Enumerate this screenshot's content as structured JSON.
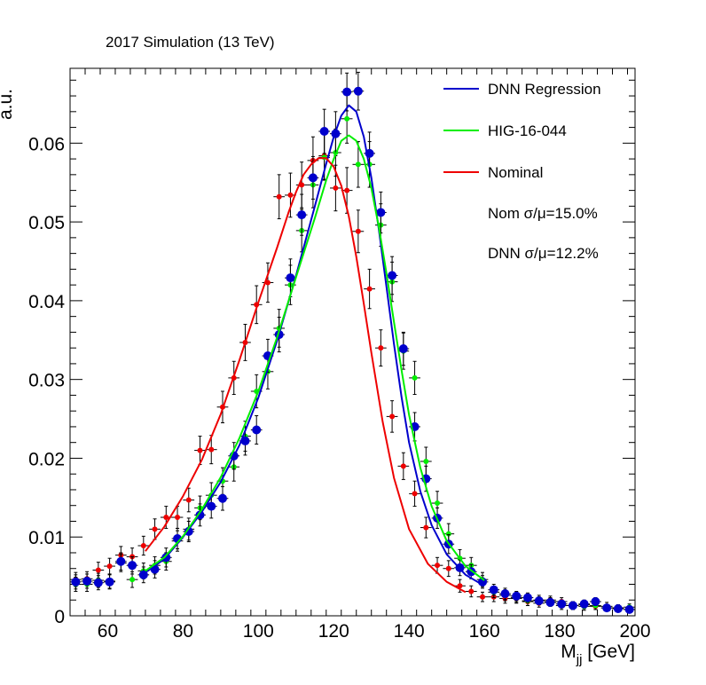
{
  "chart_data": {
    "type": "scatter",
    "header": "2017 Simulation (13 TeV)",
    "xlabel_main": "M",
    "xlabel_sub": "jj",
    "xlabel_unit": " [GeV]",
    "ylabel": "a.u.",
    "xlim": [
      50,
      200
    ],
    "ylim": [
      0,
      0.0695
    ],
    "x_ticks": [
      60,
      80,
      100,
      120,
      140,
      160,
      180,
      200
    ],
    "x_tick_labels": [
      "60",
      "80",
      "100",
      "120",
      "140",
      "160",
      "180",
      "200"
    ],
    "y_ticks": [
      0,
      0.01,
      0.02,
      0.03,
      0.04,
      0.05,
      0.06
    ],
    "y_tick_labels": [
      "0",
      "0.01",
      "0.02",
      "0.03",
      "0.04",
      "0.05",
      "0.06"
    ],
    "legend_position": "top-right",
    "legend": [
      {
        "label": "DNN Regression",
        "color": "#0000cc"
      },
      {
        "label": "HIG-16-044",
        "color": "#00ee00"
      },
      {
        "label": "Nominal",
        "color": "#ee0000"
      }
    ],
    "annotations": [
      "Nom σ/μ=15.0%",
      "DNN σ/μ=12.2%"
    ],
    "bin_half_width": 1.5,
    "series": [
      {
        "name": "DNN Regression",
        "color": "#0000cc",
        "marker_size": 5,
        "points": [
          [
            51.5,
            0.0043
          ],
          [
            54.5,
            0.0044
          ],
          [
            57.5,
            0.0042
          ],
          [
            60.5,
            0.0043
          ],
          [
            63.5,
            0.0069
          ],
          [
            66.5,
            0.0064
          ],
          [
            69.5,
            0.0052
          ],
          [
            72.5,
            0.0059
          ],
          [
            75.5,
            0.0074
          ],
          [
            78.5,
            0.0098
          ],
          [
            81.5,
            0.0107
          ],
          [
            84.5,
            0.0128
          ],
          [
            87.5,
            0.0139
          ],
          [
            90.5,
            0.0149
          ],
          [
            93.5,
            0.0203
          ],
          [
            96.5,
            0.0222
          ],
          [
            99.5,
            0.0236
          ],
          [
            102.5,
            0.033
          ],
          [
            105.5,
            0.0357
          ],
          [
            108.5,
            0.0429
          ],
          [
            111.5,
            0.0509
          ],
          [
            114.5,
            0.0556
          ],
          [
            117.5,
            0.0615
          ],
          [
            120.5,
            0.0612
          ],
          [
            123.5,
            0.0665
          ],
          [
            126.5,
            0.0666
          ],
          [
            129.5,
            0.0587
          ],
          [
            132.5,
            0.0512
          ],
          [
            135.5,
            0.0432
          ],
          [
            138.5,
            0.0339
          ],
          [
            141.5,
            0.024
          ],
          [
            144.5,
            0.0174
          ],
          [
            147.5,
            0.0124
          ],
          [
            150.5,
            0.0091
          ],
          [
            153.5,
            0.0061
          ],
          [
            156.5,
            0.0056
          ],
          [
            159.5,
            0.0043
          ],
          [
            162.5,
            0.0033
          ],
          [
            165.5,
            0.0028
          ],
          [
            168.5,
            0.0025
          ],
          [
            171.5,
            0.0023
          ],
          [
            174.5,
            0.0019
          ],
          [
            177.5,
            0.0017
          ],
          [
            180.5,
            0.0015
          ],
          [
            183.5,
            0.0013
          ],
          [
            186.5,
            0.0015
          ],
          [
            189.5,
            0.0018
          ],
          [
            192.5,
            0.001
          ],
          [
            195.5,
            0.0009
          ],
          [
            198.5,
            0.0008
          ]
        ],
        "errors": [
          0.0009,
          0.0009,
          0.0009,
          0.0009,
          0.0011,
          0.0011,
          0.001,
          0.0011,
          0.0012,
          0.0013,
          0.0013,
          0.0014,
          0.0015,
          0.0015,
          0.0017,
          0.0018,
          0.0018,
          0.0021,
          0.0022,
          0.0024,
          0.0026,
          0.0027,
          0.0028,
          0.0028,
          0.0024,
          0.0024,
          0.0027,
          0.0026,
          0.0024,
          0.0021,
          0.0018,
          0.0016,
          0.0013,
          0.0012,
          0.001,
          0.0009,
          0.0008,
          0.0007,
          0.0007,
          0.0006,
          0.0006,
          0.0005,
          0.0005,
          0.0005,
          0.0005,
          0.0005,
          0.0005,
          0.0004,
          0.0004,
          0.0004
        ],
        "curve": [
          [
            70,
            0.0055
          ],
          [
            75,
            0.0072
          ],
          [
            80,
            0.01
          ],
          [
            85,
            0.0132
          ],
          [
            90,
            0.017
          ],
          [
            95,
            0.0217
          ],
          [
            100,
            0.0277
          ],
          [
            105,
            0.035
          ],
          [
            110,
            0.0432
          ],
          [
            115,
            0.052
          ],
          [
            118,
            0.0574
          ],
          [
            120,
            0.0608
          ],
          [
            122,
            0.0635
          ],
          [
            124,
            0.0648
          ],
          [
            126,
            0.064
          ],
          [
            128,
            0.0608
          ],
          [
            130,
            0.0556
          ],
          [
            132,
            0.049
          ],
          [
            134,
            0.0418
          ],
          [
            136,
            0.0345
          ],
          [
            138,
            0.0278
          ],
          [
            140,
            0.022
          ],
          [
            143,
            0.0158
          ],
          [
            146,
            0.0115
          ],
          [
            150,
            0.0078
          ],
          [
            155,
            0.0052
          ],
          [
            160,
            0.0038
          ]
        ]
      },
      {
        "name": "HIG-16-044",
        "color": "#00ee00",
        "marker_size": 3,
        "points": [
          [
            51.5,
            0.004
          ],
          [
            54.5,
            0.004
          ],
          [
            57.5,
            0.0045
          ],
          [
            60.5,
            0.0044
          ],
          [
            63.5,
            0.0067
          ],
          [
            66.5,
            0.0046
          ],
          [
            69.5,
            0.0057
          ],
          [
            72.5,
            0.0064
          ],
          [
            75.5,
            0.0069
          ],
          [
            78.5,
            0.0095
          ],
          [
            81.5,
            0.011
          ],
          [
            84.5,
            0.0137
          ],
          [
            87.5,
            0.0153
          ],
          [
            90.5,
            0.0171
          ],
          [
            93.5,
            0.0189
          ],
          [
            96.5,
            0.0228
          ],
          [
            99.5,
            0.0285
          ],
          [
            102.5,
            0.031
          ],
          [
            105.5,
            0.0365
          ],
          [
            108.5,
            0.042
          ],
          [
            111.5,
            0.0489
          ],
          [
            114.5,
            0.0547
          ],
          [
            117.5,
            0.0582
          ],
          [
            120.5,
            0.0588
          ],
          [
            123.5,
            0.0631
          ],
          [
            126.5,
            0.0573
          ],
          [
            129.5,
            0.0573
          ],
          [
            132.5,
            0.0496
          ],
          [
            135.5,
            0.0424
          ],
          [
            138.5,
            0.0336
          ],
          [
            141.5,
            0.0302
          ],
          [
            144.5,
            0.0196
          ],
          [
            147.5,
            0.0143
          ],
          [
            150.5,
            0.0104
          ],
          [
            153.5,
            0.0073
          ],
          [
            156.5,
            0.0064
          ],
          [
            159.5,
            0.0046
          ],
          [
            162.5,
            0.003
          ],
          [
            165.5,
            0.0026
          ],
          [
            168.5,
            0.0023
          ],
          [
            171.5,
            0.0019
          ],
          [
            174.5,
            0.002
          ],
          [
            177.5,
            0.0018
          ],
          [
            180.5,
            0.0013
          ],
          [
            183.5,
            0.0013
          ],
          [
            186.5,
            0.0012
          ],
          [
            189.5,
            0.0013
          ],
          [
            192.5,
            0.0012
          ],
          [
            195.5,
            0.001
          ],
          [
            198.5,
            0.0011
          ]
        ],
        "errors": [
          0.0009,
          0.0009,
          0.0009,
          0.0009,
          0.0011,
          0.001,
          0.001,
          0.0011,
          0.0011,
          0.0013,
          0.0014,
          0.0015,
          0.0016,
          0.0017,
          0.0018,
          0.0019,
          0.0021,
          0.0022,
          0.0024,
          0.0025,
          0.0027,
          0.0029,
          0.0029,
          0.003,
          0.0031,
          0.0029,
          0.0029,
          0.0027,
          0.0025,
          0.0023,
          0.0021,
          0.0018,
          0.0015,
          0.0013,
          0.0011,
          0.001,
          0.0009,
          0.0007,
          0.0007,
          0.0006,
          0.0006,
          0.0006,
          0.0005,
          0.0005,
          0.0005,
          0.0005,
          0.0005,
          0.0005,
          0.0004,
          0.0004
        ],
        "curve": [
          [
            70,
            0.0057
          ],
          [
            75,
            0.0074
          ],
          [
            80,
            0.0101
          ],
          [
            85,
            0.0135
          ],
          [
            90,
            0.0176
          ],
          [
            95,
            0.0226
          ],
          [
            100,
            0.0285
          ],
          [
            105,
            0.0354
          ],
          [
            110,
            0.043
          ],
          [
            115,
            0.0505
          ],
          [
            118,
            0.0553
          ],
          [
            120,
            0.058
          ],
          [
            122,
            0.0603
          ],
          [
            124,
            0.061
          ],
          [
            126,
            0.0603
          ],
          [
            128,
            0.058
          ],
          [
            130,
            0.0543
          ],
          [
            132,
            0.0493
          ],
          [
            134,
            0.0435
          ],
          [
            136,
            0.0373
          ],
          [
            138,
            0.0312
          ],
          [
            140,
            0.0255
          ],
          [
            143,
            0.0188
          ],
          [
            146,
            0.0139
          ],
          [
            150,
            0.0095
          ],
          [
            155,
            0.0063
          ],
          [
            160,
            0.0045
          ]
        ]
      },
      {
        "name": "Nominal",
        "color": "#ee0000",
        "marker_size": 3,
        "points": [
          [
            51.5,
            0.0046
          ],
          [
            54.5,
            0.0047
          ],
          [
            57.5,
            0.0058
          ],
          [
            60.5,
            0.0063
          ],
          [
            63.5,
            0.0077
          ],
          [
            66.5,
            0.0075
          ],
          [
            69.5,
            0.0089
          ],
          [
            72.5,
            0.011
          ],
          [
            75.5,
            0.0125
          ],
          [
            78.5,
            0.0125
          ],
          [
            81.5,
            0.0147
          ],
          [
            84.5,
            0.021
          ],
          [
            87.5,
            0.0211
          ],
          [
            90.5,
            0.0265
          ],
          [
            93.5,
            0.0302
          ],
          [
            96.5,
            0.0347
          ],
          [
            99.5,
            0.0395
          ],
          [
            102.5,
            0.0423
          ],
          [
            105.5,
            0.0532
          ],
          [
            108.5,
            0.0534
          ],
          [
            111.5,
            0.0547
          ],
          [
            114.5,
            0.0578
          ],
          [
            117.5,
            0.0584
          ],
          [
            120.5,
            0.0543
          ],
          [
            123.5,
            0.054
          ],
          [
            126.5,
            0.0488
          ],
          [
            129.5,
            0.0415
          ],
          [
            132.5,
            0.034
          ],
          [
            135.5,
            0.0253
          ],
          [
            138.5,
            0.019
          ],
          [
            141.5,
            0.0155
          ],
          [
            144.5,
            0.0112
          ],
          [
            147.5,
            0.0064
          ],
          [
            150.5,
            0.006
          ],
          [
            153.5,
            0.0038
          ],
          [
            156.5,
            0.0031
          ],
          [
            159.5,
            0.0024
          ],
          [
            162.5,
            0.0024
          ],
          [
            165.5,
            0.0022
          ],
          [
            168.5,
            0.0022
          ],
          [
            171.5,
            0.0018
          ],
          [
            174.5,
            0.0016
          ],
          [
            177.5,
            0.002
          ],
          [
            180.5,
            0.0018
          ],
          [
            183.5,
            0.0013
          ],
          [
            186.5,
            0.0014
          ],
          [
            189.5,
            0.0012
          ],
          [
            192.5,
            0.001
          ],
          [
            195.5,
            0.001
          ],
          [
            198.5,
            0.0008
          ]
        ],
        "errors": [
          0.0009,
          0.0009,
          0.001,
          0.001,
          0.0011,
          0.0011,
          0.0012,
          0.0013,
          0.0014,
          0.0014,
          0.0015,
          0.0018,
          0.0018,
          0.002,
          0.0021,
          0.0023,
          0.0024,
          0.0025,
          0.0028,
          0.0028,
          0.0029,
          0.003,
          0.003,
          0.0029,
          0.0029,
          0.0027,
          0.0025,
          0.0023,
          0.002,
          0.0017,
          0.0016,
          0.0013,
          0.001,
          0.001,
          0.0008,
          0.0007,
          0.0006,
          0.0006,
          0.0006,
          0.0006,
          0.0005,
          0.0005,
          0.0005,
          0.0005,
          0.0005,
          0.0005,
          0.0004,
          0.0004,
          0.0004,
          0.0004
        ],
        "curve": [
          [
            70,
            0.0082
          ],
          [
            75,
            0.0113
          ],
          [
            80,
            0.0152
          ],
          [
            85,
            0.0198
          ],
          [
            90,
            0.0256
          ],
          [
            95,
            0.0325
          ],
          [
            100,
            0.0398
          ],
          [
            105,
            0.0468
          ],
          [
            108,
            0.0512
          ],
          [
            110,
            0.0538
          ],
          [
            112,
            0.056
          ],
          [
            114,
            0.0573
          ],
          [
            116,
            0.0581
          ],
          [
            118,
            0.0581
          ],
          [
            120,
            0.057
          ],
          [
            122,
            0.0546
          ],
          [
            124,
            0.0507
          ],
          [
            126,
            0.0456
          ],
          [
            128,
            0.0396
          ],
          [
            130,
            0.0334
          ],
          [
            133,
            0.0246
          ],
          [
            136,
            0.0175
          ],
          [
            140,
            0.011
          ],
          [
            145,
            0.0066
          ],
          [
            150,
            0.0043
          ],
          [
            155,
            0.003
          ]
        ]
      }
    ]
  }
}
